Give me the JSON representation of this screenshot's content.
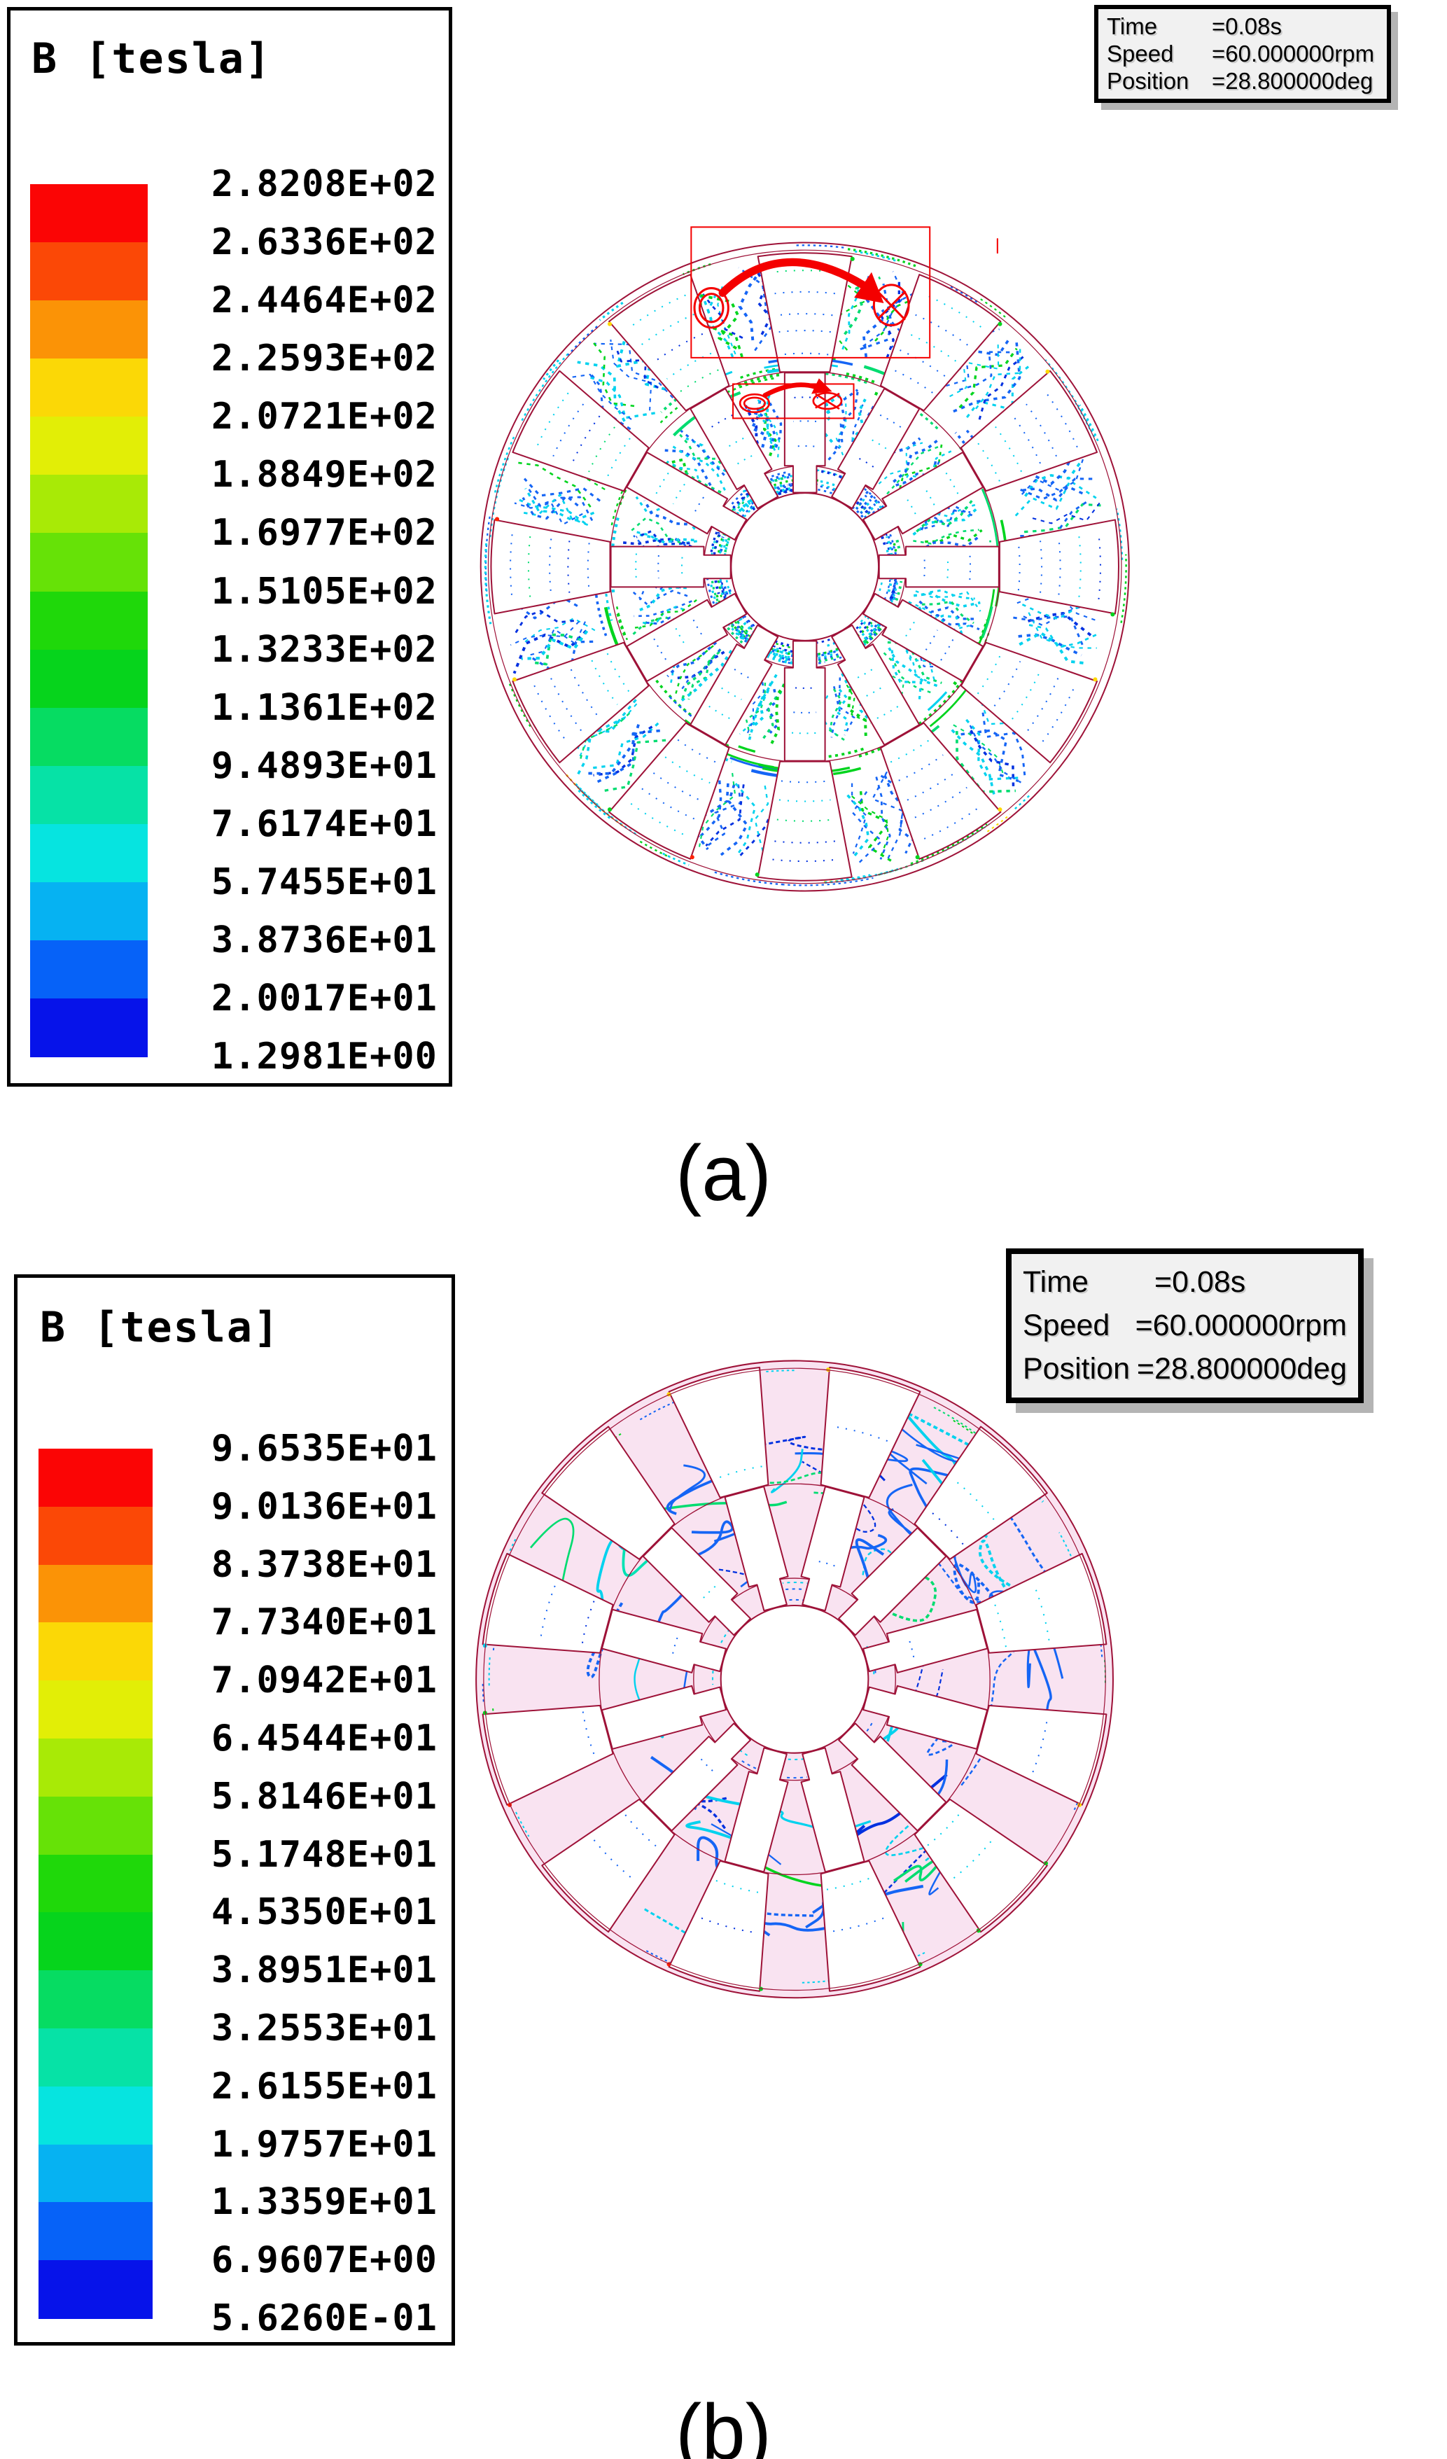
{
  "colors": {
    "outline": "#9e1238",
    "annotation_red": "#f40000",
    "pink_fill": "#f9e3f1",
    "slot_fill": "#ffffff",
    "infobox_bg": "#f1f1f1",
    "infobox_shadow": "#b4b4b4",
    "legend_palette": [
      "#fb0505",
      "#fb4806",
      "#fb9306",
      "#fbd806",
      "#e2ee06",
      "#a8ea06",
      "#66e207",
      "#1fd80a",
      "#06d41c",
      "#06dc62",
      "#06e2a6",
      "#06e4e0",
      "#06b2f2",
      "#0662f8",
      "#0613ea"
    ]
  },
  "figure_a": {
    "legend": {
      "title": "B [tesla]",
      "values": [
        "2.8208E+02",
        "2.6336E+02",
        "2.4464E+02",
        "2.2593E+02",
        "2.0721E+02",
        "1.8849E+02",
        "1.6977E+02",
        "1.5105E+02",
        "1.3233E+02",
        "1.1361E+02",
        "9.4893E+01",
        "7.6174E+01",
        "5.7455E+01",
        "3.8736E+01",
        "2.0017E+01",
        "1.2981E+00"
      ]
    },
    "info_box": {
      "rows": [
        {
          "label": "Time",
          "value": "=0.08s"
        },
        {
          "label": "Speed",
          "value": "=60.000000rpm"
        },
        {
          "label": "Position",
          "value": "=28.800000deg"
        }
      ]
    },
    "caption": "(a)"
  },
  "figure_b": {
    "legend": {
      "title": "B [tesla]",
      "values": [
        "9.6535E+01",
        "9.0136E+01",
        "8.3738E+01",
        "7.7340E+01",
        "7.0942E+01",
        "6.4544E+01",
        "5.8146E+01",
        "5.1748E+01",
        "4.5350E+01",
        "3.8951E+01",
        "3.2553E+01",
        "2.6155E+01",
        "1.9757E+01",
        "1.3359E+01",
        "6.9607E+00",
        "5.6260E-01"
      ]
    },
    "info_box": {
      "rows": [
        {
          "label": "Time",
          "value": "=0.08s"
        },
        {
          "label": "Speed",
          "value": "=60.000000rpm"
        },
        {
          "label": "Position",
          "value": "=28.800000deg"
        }
      ]
    },
    "caption": "(b)"
  },
  "chart_data": [
    {
      "type": "heatmap",
      "subfigure": "(a)",
      "title": "B [tesla]",
      "legend_entries": [
        "2.8208E+02",
        "2.6336E+02",
        "2.4464E+02",
        "2.2593E+02",
        "2.0721E+02",
        "1.8849E+02",
        "1.6977E+02",
        "1.5105E+02",
        "1.3233E+02",
        "1.1361E+02",
        "9.4893E+01",
        "7.6174E+01",
        "5.7455E+01",
        "3.8736E+01",
        "2.0017E+01",
        "1.2981E+00"
      ],
      "legend_values_tesla": [
        282.08,
        263.36,
        244.64,
        225.93,
        207.21,
        188.49,
        169.77,
        151.05,
        132.33,
        113.61,
        94.893,
        76.174,
        57.455,
        38.736,
        20.017,
        1.2981
      ],
      "value_range": [
        1.2981,
        282.08
      ],
      "legend_position": "left",
      "annotations": [
        "Time =0.08s",
        "Speed =60.000000rpm",
        "Position =28.800000deg"
      ],
      "description": "Magnetic flux density contour plot of a 12/12-slot double-ring electric machine cross-section with red current-direction annotation (dot and cross symbols joined by curved arrows)"
    },
    {
      "type": "heatmap",
      "subfigure": "(b)",
      "title": "B [tesla]",
      "legend_entries": [
        "9.6535E+01",
        "9.0136E+01",
        "8.3738E+01",
        "7.7340E+01",
        "7.0942E+01",
        "6.4544E+01",
        "5.8146E+01",
        "5.1748E+01",
        "4.5350E+01",
        "3.8951E+01",
        "3.2553E+01",
        "2.6155E+01",
        "1.9757E+01",
        "1.3359E+01",
        "6.9607E+00",
        "5.6260E-01"
      ],
      "legend_values_tesla": [
        96.535,
        90.136,
        83.738,
        77.34,
        70.942,
        64.544,
        58.146,
        51.748,
        45.35,
        38.951,
        32.553,
        26.155,
        19.757,
        13.359,
        6.9607,
        0.5626
      ],
      "value_range": [
        0.5626,
        96.535
      ],
      "legend_position": "left",
      "annotations": [
        "Time =0.08s",
        "Speed =60.000000rpm",
        "Position =28.800000deg"
      ],
      "description": "Magnetic flux density contour plot of the same machine with pink-shaded iron regions and sparse flux contours"
    }
  ]
}
